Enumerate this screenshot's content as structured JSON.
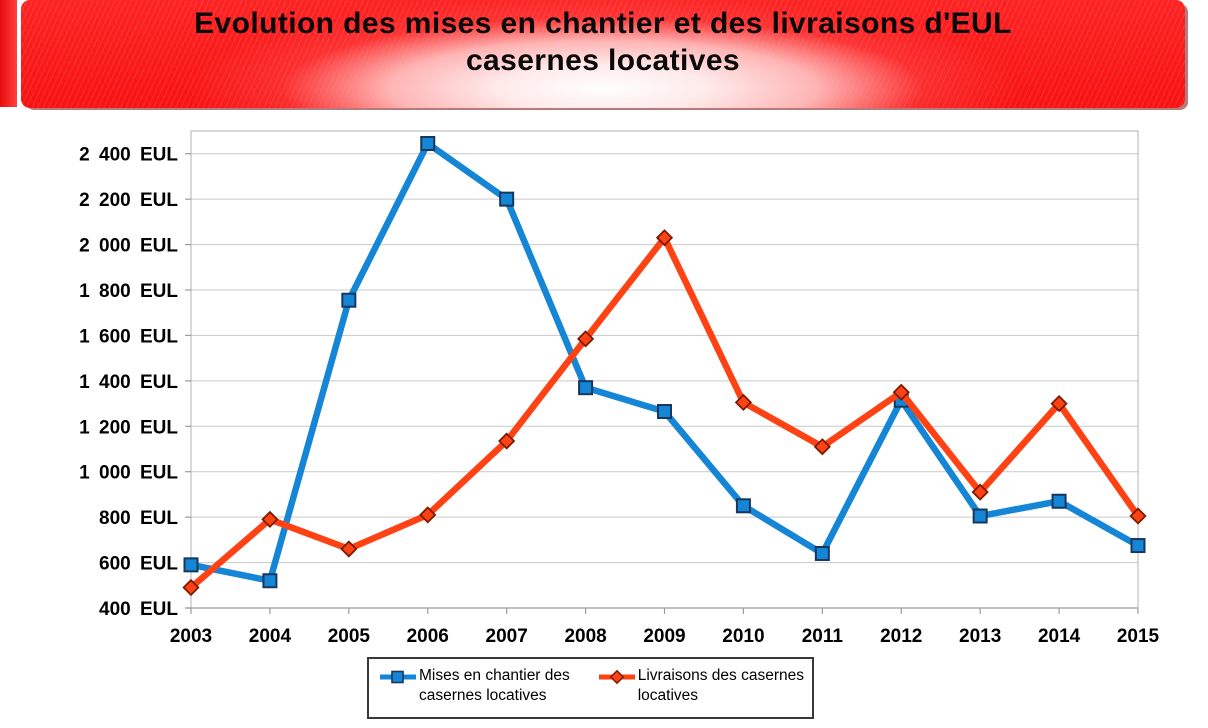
{
  "banner": {
    "title_lines": [
      "Evolution des mises en chantier et des livraisons d'EUL",
      "casernes locatives"
    ],
    "colors": {
      "background_red": "#fa1313",
      "center_glow": "#ffffff",
      "text": "#0a0a0a"
    }
  },
  "chart_data": {
    "type": "line",
    "title": "Evolution des mises en chantier et des livraisons d'EUL casernes locatives",
    "xlabel": "",
    "ylabel": "",
    "categories": [
      "2003",
      "2004",
      "2005",
      "2006",
      "2007",
      "2008",
      "2009",
      "2010",
      "2011",
      "2012",
      "2013",
      "2014",
      "2015"
    ],
    "series": [
      {
        "name": "Mises en chantier des casernes locatives",
        "label_lines": [
          "Mises en chantier des",
          "casernes locatives"
        ],
        "marker": "square",
        "color": "#1585d6",
        "marker_border": "#17375e",
        "values": [
          590,
          520,
          1755,
          2445,
          2200,
          1370,
          1265,
          850,
          640,
          1315,
          805,
          870,
          675
        ]
      },
      {
        "name": "Livraisons des casernes locatives",
        "label_lines": [
          "Livraisons des casernes",
          "locatives"
        ],
        "marker": "diamond",
        "color": "#ff4214",
        "marker_border": "#7a1c00",
        "values": [
          490,
          790,
          660,
          810,
          1135,
          1585,
          2030,
          1305,
          1110,
          1350,
          910,
          1300,
          805
        ]
      }
    ],
    "ylim": [
      400,
      2500
    ],
    "ytick_step": 200,
    "ytick_max": 2400,
    "ytick_labels": [
      "2 400 EUL",
      "2 200 EUL",
      "2 000 EUL",
      "1 800 EUL",
      "1 600 EUL",
      "1 400 EUL",
      "1 200 EUL",
      "1 000 EUL",
      "800 EUL",
      "600 EUL",
      "400 EUL"
    ],
    "grid": true,
    "legend_position": "bottom",
    "colors": {
      "grid": "#c9c9c9",
      "plot_border": "#b3b3b3",
      "axis": "#9c9c9c"
    }
  }
}
